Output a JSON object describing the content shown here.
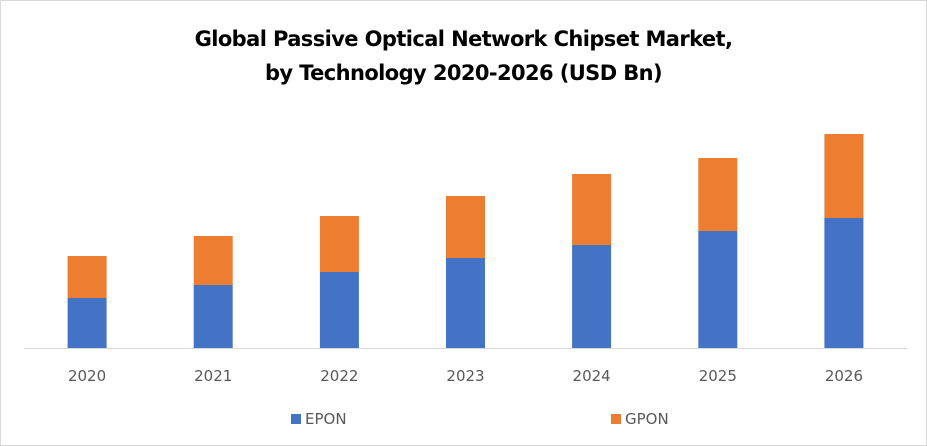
{
  "chart_data": {
    "type": "bar",
    "stacked": true,
    "title": "Global Passive Optical Network Chipset Market, by Technology 2020-2026 (USD Bn)",
    "title_lines": [
      "Global Passive Optical Network Chipset Market,",
      "by Technology 2020-2026 (USD Bn)"
    ],
    "xlabel": "",
    "ylabel": "",
    "categories": [
      "2020",
      "2021",
      "2022",
      "2023",
      "2024",
      "2025",
      "2026"
    ],
    "series": [
      {
        "name": "EPON",
        "color": "#4472c4",
        "values": [
          0.5,
          0.63,
          0.76,
          0.9,
          1.03,
          1.17,
          1.3
        ]
      },
      {
        "name": "GPON",
        "color": "#ed7d31",
        "values": [
          0.42,
          0.49,
          0.56,
          0.62,
          0.71,
          0.73,
          0.84
        ]
      }
    ],
    "ylim": [
      0,
      2.2
    ],
    "grid": false,
    "y_axis_visible": false,
    "legend_position": "bottom",
    "note": "No y-axis tick labels shown; values estimated in relative units from bar heights"
  }
}
